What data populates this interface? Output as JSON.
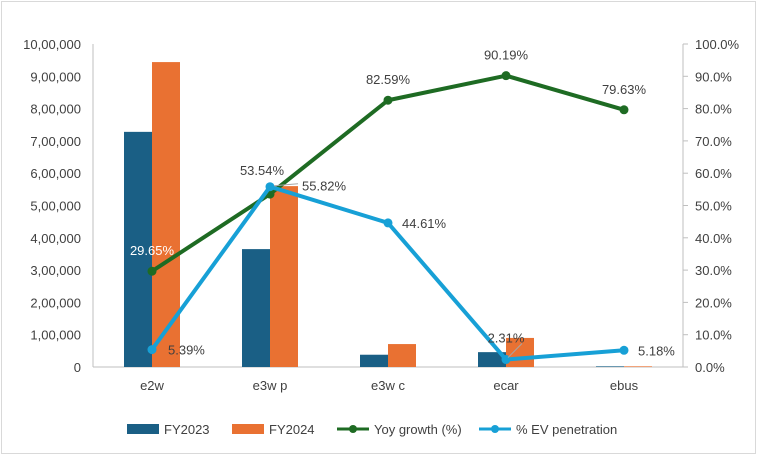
{
  "chart_data": {
    "type": "bar",
    "categories": [
      "e2w",
      "e3w p",
      "e3w c",
      "ecar",
      "ebus"
    ],
    "series": [
      {
        "name": "FY2023",
        "kind": "bar",
        "axis": "left",
        "color": "#1a5f85",
        "values": [
          728000,
          365000,
          38000,
          46000,
          2000
        ]
      },
      {
        "name": "FY2024",
        "kind": "bar",
        "axis": "left",
        "color": "#e97132",
        "values": [
          944000,
          560000,
          71000,
          90000,
          2000
        ]
      },
      {
        "name": "Yoy growth (%)",
        "kind": "line",
        "axis": "right",
        "color": "#1e6b23",
        "values": [
          29.65,
          53.54,
          82.59,
          90.19,
          79.63
        ],
        "labels": [
          "29.65%",
          "53.54%",
          "82.59%",
          "90.19%",
          "79.63%"
        ]
      },
      {
        "name": "% EV penetration",
        "kind": "line",
        "axis": "right",
        "color": "#17a0d6",
        "values": [
          5.39,
          55.82,
          44.61,
          2.31,
          5.18
        ],
        "labels": [
          "5.39%",
          "55.82%",
          "44.61%",
          "2.31%",
          "5.18%"
        ]
      }
    ],
    "left_axis": {
      "ylim": [
        0,
        1000000
      ],
      "ticks": [
        "0",
        "1,00,000",
        "2,00,000",
        "3,00,000",
        "4,00,000",
        "5,00,000",
        "6,00,000",
        "7,00,000",
        "8,00,000",
        "9,00,000",
        "10,00,000"
      ]
    },
    "right_axis": {
      "ylim": [
        0,
        100
      ],
      "ticks": [
        "0.0%",
        "10.0%",
        "20.0%",
        "30.0%",
        "40.0%",
        "50.0%",
        "60.0%",
        "70.0%",
        "80.0%",
        "90.0%",
        "100.0%"
      ]
    },
    "grid": false,
    "legend_position": "bottom"
  }
}
